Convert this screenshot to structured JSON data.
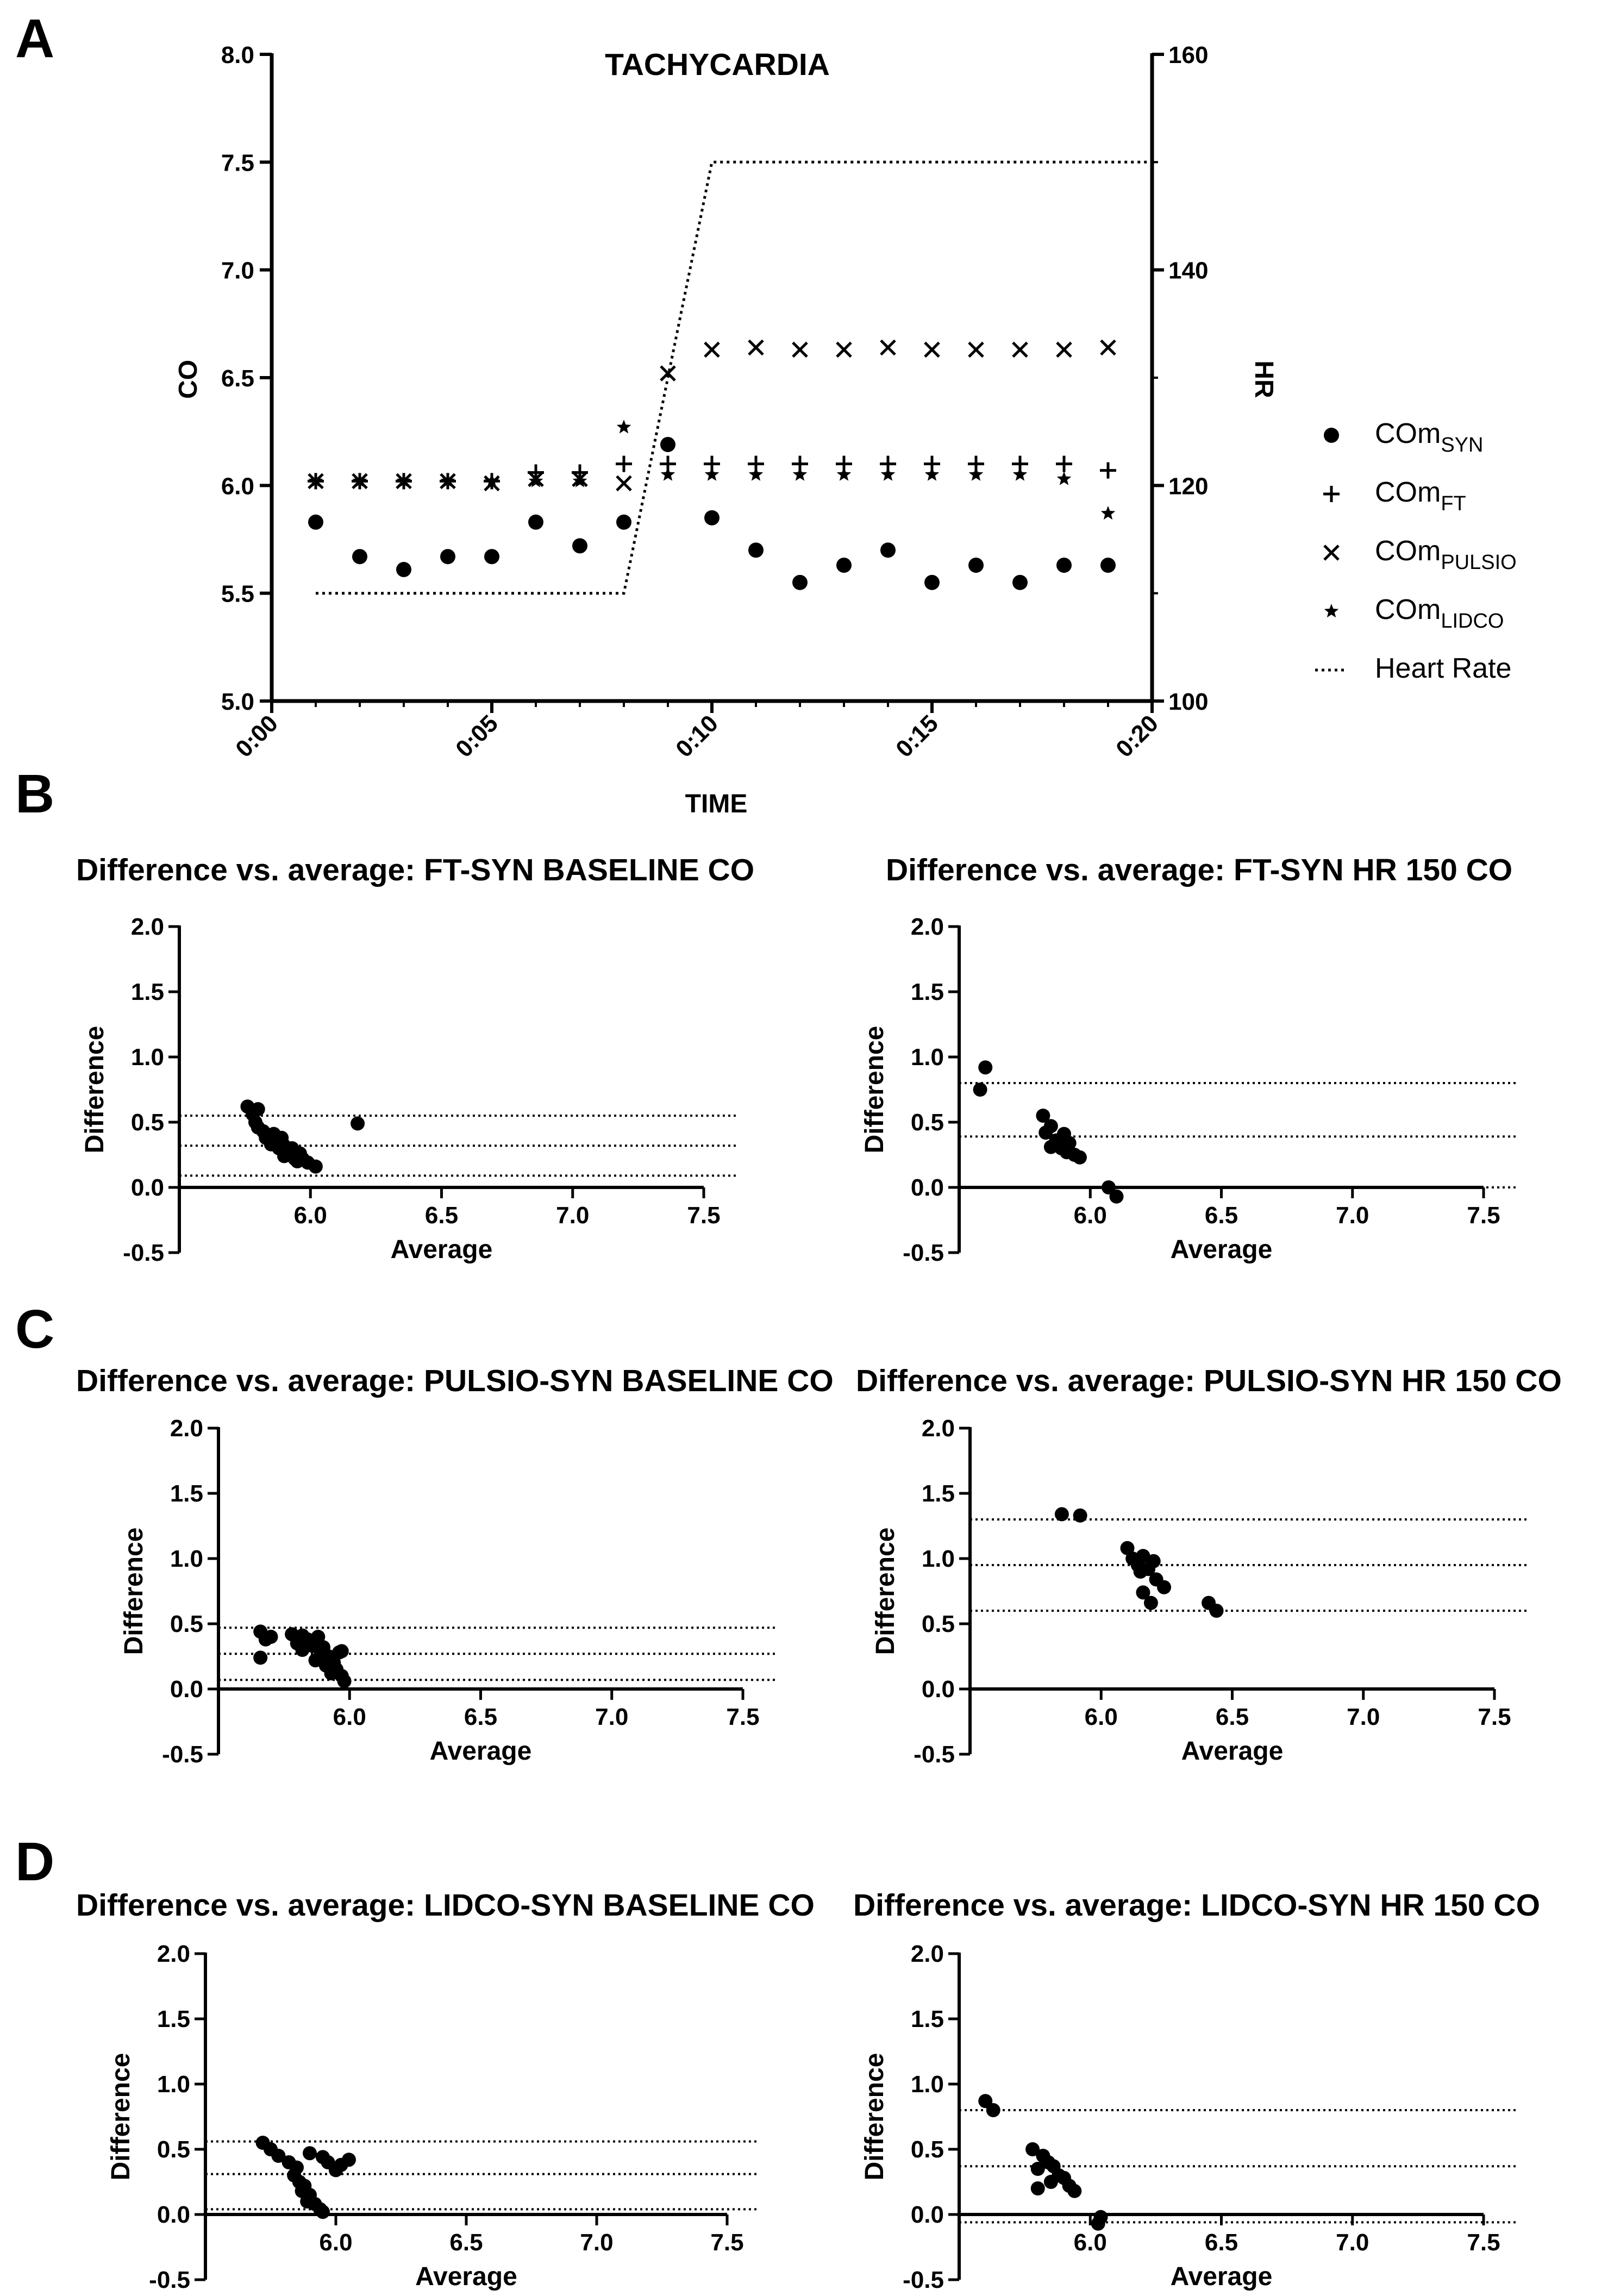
{
  "chart_data": [
    {
      "panel": "A",
      "type": "scatter",
      "title": "TACHYCARDIA",
      "xlabel": "TIME",
      "ylabel": "CO",
      "y2label": "HR",
      "x_ticks": [
        "0:00",
        "0:05",
        "0:10",
        "0:15",
        "0:20"
      ],
      "xlim_minutes": [
        0,
        20
      ],
      "ylim": [
        5.0,
        8.0
      ],
      "y_ticks": [
        "5.0",
        "5.5",
        "6.0",
        "6.5",
        "7.0",
        "7.5",
        "8.0"
      ],
      "y2lim": [
        100,
        160
      ],
      "y2_ticks": [
        "100",
        "120",
        "140",
        "160"
      ],
      "x_minutes": [
        1,
        2,
        3,
        4,
        5,
        6,
        7,
        8,
        9,
        10,
        11,
        12,
        13,
        14,
        15,
        16,
        17,
        18,
        19
      ],
      "series": [
        {
          "name": "COmSYN",
          "label": "COm",
          "sub": "SYN",
          "marker": "circle",
          "values": [
            5.83,
            5.67,
            5.61,
            5.67,
            5.67,
            5.83,
            5.72,
            5.83,
            6.19,
            5.85,
            5.7,
            5.55,
            5.63,
            5.7,
            5.55,
            5.63,
            5.55,
            5.63,
            5.63
          ]
        },
        {
          "name": "COmFT",
          "label": "COm",
          "sub": "FT",
          "marker": "plus",
          "values": [
            6.02,
            6.02,
            6.02,
            6.02,
            6.02,
            6.06,
            6.06,
            6.1,
            6.1,
            6.1,
            6.1,
            6.1,
            6.1,
            6.1,
            6.1,
            6.1,
            6.1,
            6.1,
            6.07
          ]
        },
        {
          "name": "COmPULSIO",
          "label": "COm",
          "sub": "PULSIO",
          "marker": "cross",
          "values": [
            6.02,
            6.02,
            6.02,
            6.02,
            6.01,
            6.03,
            6.03,
            6.01,
            6.52,
            6.63,
            6.64,
            6.63,
            6.63,
            6.64,
            6.63,
            6.63,
            6.63,
            6.63,
            6.64
          ]
        },
        {
          "name": "COmLIDCO",
          "label": "COm",
          "sub": "LIDCO",
          "marker": "star",
          "values": [
            6.02,
            6.02,
            6.02,
            6.02,
            6.02,
            6.02,
            6.02,
            6.27,
            6.05,
            6.05,
            6.05,
            6.05,
            6.05,
            6.05,
            6.05,
            6.05,
            6.05,
            6.03,
            5.87
          ]
        },
        {
          "name": "Heart Rate",
          "label": "Heart Rate",
          "marker": "dotted-line",
          "axis": "y2",
          "x": [
            1,
            8,
            10,
            20
          ],
          "values": [
            110,
            110,
            150,
            150
          ]
        }
      ]
    },
    {
      "panel": "B",
      "type": "scatter",
      "title": "Difference vs. average: FT-SYN BASELINE CO",
      "xlabel": "Average",
      "ylabel": "Difference",
      "xlim": [
        5.5,
        7.5
      ],
      "ylim": [
        -0.5,
        2.0
      ],
      "x_ticks": [
        "6.0",
        "6.5",
        "7.0",
        "7.5"
      ],
      "y_ticks": [
        "-0.5",
        "0.0",
        "0.5",
        "1.0",
        "1.5",
        "2.0"
      ],
      "hlines": [
        0.55,
        0.32,
        0.09
      ],
      "points": [
        [
          5.76,
          0.62
        ],
        [
          5.8,
          0.6
        ],
        [
          5.78,
          0.56
        ],
        [
          5.79,
          0.5
        ],
        [
          5.8,
          0.46
        ],
        [
          5.82,
          0.43
        ],
        [
          5.84,
          0.4
        ],
        [
          5.86,
          0.41
        ],
        [
          5.83,
          0.38
        ],
        [
          5.87,
          0.36
        ],
        [
          5.85,
          0.33
        ],
        [
          5.89,
          0.38
        ],
        [
          5.9,
          0.32
        ],
        [
          5.88,
          0.3
        ],
        [
          5.91,
          0.28
        ],
        [
          5.93,
          0.3
        ],
        [
          5.92,
          0.26
        ],
        [
          5.9,
          0.24
        ],
        [
          5.94,
          0.22
        ],
        [
          5.96,
          0.26
        ],
        [
          5.95,
          0.2
        ],
        [
          5.97,
          0.22
        ],
        [
          5.99,
          0.19
        ],
        [
          6.02,
          0.16
        ],
        [
          6.18,
          0.49
        ]
      ]
    },
    {
      "panel": "B",
      "type": "scatter",
      "title": "Difference vs. average: FT-SYN HR 150 CO",
      "xlabel": "Average",
      "ylabel": "Difference",
      "xlim": [
        5.5,
        7.5
      ],
      "ylim": [
        -0.5,
        2.0
      ],
      "x_ticks": [
        "6.0",
        "6.5",
        "7.0",
        "7.5"
      ],
      "y_ticks": [
        "-0.5",
        "0.0",
        "0.5",
        "1.0",
        "1.5",
        "2.0"
      ],
      "hlines": [
        0.8,
        0.39,
        0.0
      ],
      "points": [
        [
          5.6,
          0.92
        ],
        [
          5.58,
          0.75
        ],
        [
          5.82,
          0.55
        ],
        [
          5.85,
          0.47
        ],
        [
          5.83,
          0.42
        ],
        [
          5.87,
          0.36
        ],
        [
          5.85,
          0.31
        ],
        [
          5.9,
          0.41
        ],
        [
          5.89,
          0.3
        ],
        [
          5.92,
          0.34
        ],
        [
          5.91,
          0.27
        ],
        [
          5.94,
          0.25
        ],
        [
          5.96,
          0.23
        ],
        [
          6.07,
          0.0
        ],
        [
          6.1,
          -0.07
        ]
      ]
    },
    {
      "panel": "C",
      "type": "scatter",
      "title": "Difference vs. average: PULSIO-SYN BASELINE CO",
      "xlabel": "Average",
      "ylabel": "Difference",
      "xlim": [
        5.5,
        7.5
      ],
      "ylim": [
        -0.5,
        2.0
      ],
      "x_ticks": [
        "6.0",
        "6.5",
        "7.0",
        "7.5"
      ],
      "y_ticks": [
        "-0.5",
        "0.0",
        "0.5",
        "1.0",
        "1.5",
        "2.0"
      ],
      "hlines": [
        0.47,
        0.27,
        0.07
      ],
      "points": [
        [
          5.66,
          0.44
        ],
        [
          5.68,
          0.38
        ],
        [
          5.7,
          0.4
        ],
        [
          5.66,
          0.24
        ],
        [
          5.78,
          0.42
        ],
        [
          5.82,
          0.41
        ],
        [
          5.84,
          0.38
        ],
        [
          5.8,
          0.35
        ],
        [
          5.82,
          0.3
        ],
        [
          5.86,
          0.33
        ],
        [
          5.88,
          0.4
        ],
        [
          5.89,
          0.26
        ],
        [
          5.9,
          0.32
        ],
        [
          5.87,
          0.22
        ],
        [
          5.91,
          0.18
        ],
        [
          5.92,
          0.25
        ],
        [
          5.93,
          0.12
        ],
        [
          5.95,
          0.15
        ],
        [
          5.94,
          0.2
        ],
        [
          5.96,
          0.28
        ],
        [
          5.97,
          0.1
        ],
        [
          5.98,
          0.06
        ],
        [
          5.97,
          0.29
        ]
      ]
    },
    {
      "panel": "C",
      "type": "scatter",
      "title": "Difference vs. average: PULSIO-SYN HR 150 CO",
      "xlabel": "Average",
      "ylabel": "Difference",
      "xlim": [
        5.5,
        7.5
      ],
      "ylim": [
        -0.5,
        2.0
      ],
      "x_ticks": [
        "6.0",
        "6.5",
        "7.0",
        "7.5"
      ],
      "y_ticks": [
        "-0.5",
        "0.0",
        "0.5",
        "1.0",
        "1.5",
        "2.0"
      ],
      "hlines": [
        1.3,
        0.95,
        0.6
      ],
      "points": [
        [
          5.85,
          1.34
        ],
        [
          5.92,
          1.33
        ],
        [
          6.1,
          1.08
        ],
        [
          6.12,
          1.0
        ],
        [
          6.14,
          0.95
        ],
        [
          6.16,
          1.02
        ],
        [
          6.15,
          0.9
        ],
        [
          6.18,
          0.92
        ],
        [
          6.2,
          0.98
        ],
        [
          6.16,
          0.74
        ],
        [
          6.19,
          0.66
        ],
        [
          6.21,
          0.84
        ],
        [
          6.24,
          0.78
        ],
        [
          6.41,
          0.66
        ],
        [
          6.44,
          0.6
        ]
      ]
    },
    {
      "panel": "D",
      "type": "scatter",
      "title": "Difference vs. average: LIDCO-SYN BASELINE CO",
      "xlabel": "Average",
      "ylabel": "Difference",
      "xlim": [
        5.5,
        7.5
      ],
      "ylim": [
        -0.5,
        2.0
      ],
      "x_ticks": [
        "6.0",
        "6.5",
        "7.0",
        "7.5"
      ],
      "y_ticks": [
        "-0.5",
        "0.0",
        "0.5",
        "1.0",
        "1.5",
        "2.0"
      ],
      "hlines": [
        0.56,
        0.31,
        0.04
      ],
      "points": [
        [
          5.72,
          0.55
        ],
        [
          5.75,
          0.5
        ],
        [
          5.78,
          0.45
        ],
        [
          5.82,
          0.4
        ],
        [
          5.85,
          0.36
        ],
        [
          5.84,
          0.3
        ],
        [
          5.86,
          0.25
        ],
        [
          5.88,
          0.22
        ],
        [
          5.87,
          0.18
        ],
        [
          5.9,
          0.15
        ],
        [
          5.89,
          0.1
        ],
        [
          5.92,
          0.08
        ],
        [
          5.94,
          0.04
        ],
        [
          5.95,
          0.02
        ],
        [
          5.9,
          0.47
        ],
        [
          5.95,
          0.44
        ],
        [
          5.97,
          0.4
        ],
        [
          6.02,
          0.38
        ],
        [
          6.05,
          0.42
        ],
        [
          6.0,
          0.34
        ]
      ]
    },
    {
      "panel": "D",
      "type": "scatter",
      "title": "Difference vs. average: LIDCO-SYN HR 150 CO",
      "xlabel": "Average",
      "ylabel": "Difference",
      "xlim": [
        5.5,
        7.5
      ],
      "ylim": [
        -0.5,
        2.0
      ],
      "x_ticks": [
        "6.0",
        "6.5",
        "7.0",
        "7.5"
      ],
      "y_ticks": [
        "-0.5",
        "0.0",
        "0.5",
        "1.0",
        "1.5",
        "2.0"
      ],
      "hlines": [
        0.8,
        0.37,
        -0.06
      ],
      "points": [
        [
          5.6,
          0.87
        ],
        [
          5.63,
          0.8
        ],
        [
          5.78,
          0.5
        ],
        [
          5.82,
          0.45
        ],
        [
          5.84,
          0.4
        ],
        [
          5.8,
          0.35
        ],
        [
          5.86,
          0.37
        ],
        [
          5.88,
          0.3
        ],
        [
          5.85,
          0.25
        ],
        [
          5.9,
          0.28
        ],
        [
          5.92,
          0.22
        ],
        [
          5.8,
          0.2
        ],
        [
          5.94,
          0.18
        ],
        [
          6.04,
          -0.02
        ],
        [
          6.03,
          -0.07
        ]
      ]
    }
  ]
}
